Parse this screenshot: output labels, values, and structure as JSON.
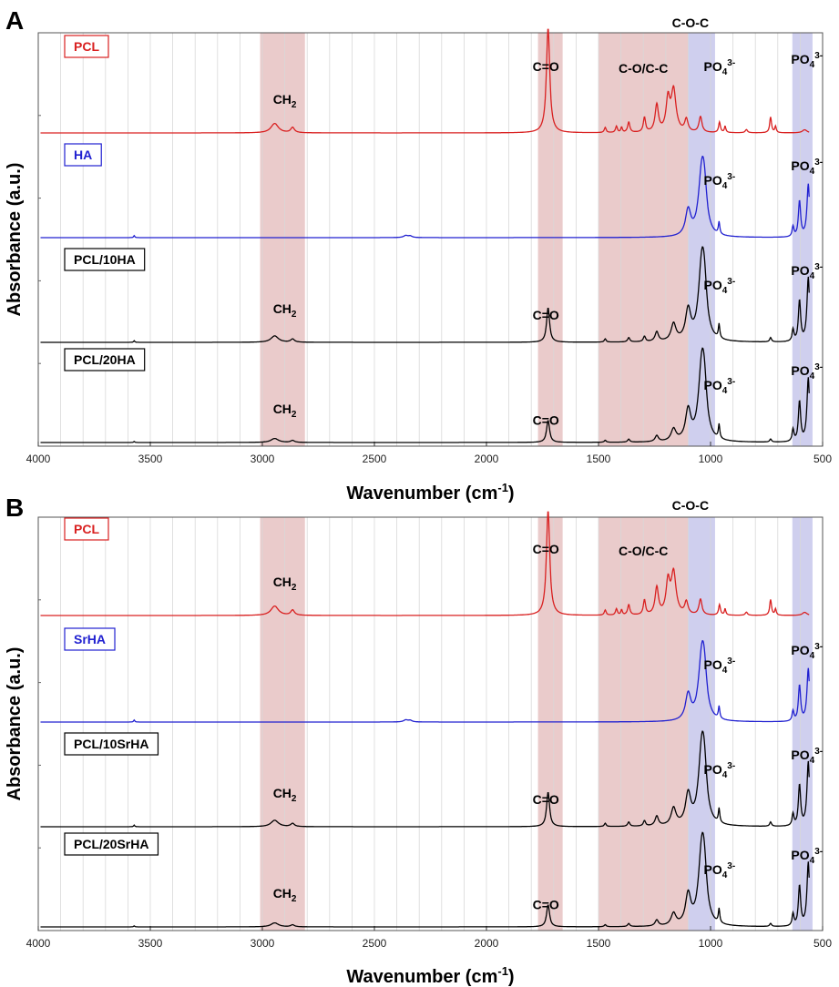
{
  "colors": {
    "pcl": "#d92020",
    "ha": "#2020d0",
    "composite": "#000000",
    "band_pink": "#d9a0a0",
    "band_blue": "#a8a8e0"
  },
  "chart_data": [
    {
      "panel": "A",
      "type": "line",
      "xlabel": "Wavenumber (cm",
      "xlabel_sup": "-1",
      "xlabel_close": ")",
      "ylabel": "Absorbance (a.u.)",
      "xlim": [
        4000,
        500
      ],
      "x_reversed": true,
      "x_ticks": [
        "4000",
        "3500",
        "3000",
        "2500",
        "2000",
        "1500",
        "1000",
        "500"
      ],
      "grid": true,
      "bands": [
        {
          "from": 3010,
          "to": 2810,
          "color": "pink"
        },
        {
          "from": 1770,
          "to": 1660,
          "color": "pink"
        },
        {
          "from": 1500,
          "to": 1100,
          "color": "pink"
        },
        {
          "from": 1100,
          "to": 980,
          "color": "blue"
        },
        {
          "from": 635,
          "to": 545,
          "color": "blue"
        }
      ],
      "series": [
        {
          "name": "PCL",
          "color": "pcl"
        },
        {
          "name": "HA",
          "color": "ha"
        },
        {
          "name": "PCL/10HA",
          "color": "composite"
        },
        {
          "name": "PCL/20HA",
          "color": "composite"
        }
      ],
      "annotations": [
        {
          "series": 0,
          "x": 2900,
          "text": "CH",
          "sub": "2",
          "sup": ""
        },
        {
          "series": 0,
          "x": 1735,
          "text": "C=O",
          "sub": "",
          "sup": ""
        },
        {
          "series": 0,
          "x": 1300,
          "text": "C-O/C-C",
          "sub": "",
          "sup": ""
        },
        {
          "series": 0,
          "x": 1090,
          "text": "C-O-C",
          "sub": "",
          "sup": ""
        },
        {
          "series": 0,
          "x": 960,
          "text": "PO",
          "sub": "4",
          "sup": "3-"
        },
        {
          "series": 0,
          "x": 570,
          "text": "PO",
          "sub": "4",
          "sup": "3-"
        },
        {
          "series": 1,
          "x": 960,
          "text": "PO",
          "sub": "4",
          "sup": "3-"
        },
        {
          "series": 1,
          "x": 570,
          "text": "PO",
          "sub": "4",
          "sup": "3-"
        },
        {
          "series": 2,
          "x": 2900,
          "text": "CH",
          "sub": "2",
          "sup": ""
        },
        {
          "series": 2,
          "x": 1735,
          "text": "C=O",
          "sub": "",
          "sup": ""
        },
        {
          "series": 2,
          "x": 960,
          "text": "PO",
          "sub": "4",
          "sup": "3-"
        },
        {
          "series": 2,
          "x": 570,
          "text": "PO",
          "sub": "4",
          "sup": "3-"
        },
        {
          "series": 3,
          "x": 2900,
          "text": "CH",
          "sub": "2",
          "sup": ""
        },
        {
          "series": 3,
          "x": 1735,
          "text": "C=O",
          "sub": "",
          "sup": ""
        },
        {
          "series": 3,
          "x": 960,
          "text": "PO",
          "sub": "4",
          "sup": "3-"
        },
        {
          "series": 3,
          "x": 570,
          "text": "PO",
          "sub": "4",
          "sup": "3-"
        }
      ]
    },
    {
      "panel": "B",
      "type": "line",
      "xlabel": "Wavenumber (cm",
      "xlabel_sup": "-1",
      "xlabel_close": ")",
      "ylabel": "Absorbance (a.u.)",
      "xlim": [
        4000,
        500
      ],
      "x_reversed": true,
      "x_ticks": [
        "4000",
        "3500",
        "3000",
        "2500",
        "2000",
        "1500",
        "1000",
        "500"
      ],
      "grid": true,
      "bands": [
        {
          "from": 3010,
          "to": 2810,
          "color": "pink"
        },
        {
          "from": 1770,
          "to": 1660,
          "color": "pink"
        },
        {
          "from": 1500,
          "to": 1100,
          "color": "pink"
        },
        {
          "from": 1100,
          "to": 980,
          "color": "blue"
        },
        {
          "from": 635,
          "to": 545,
          "color": "blue"
        }
      ],
      "series": [
        {
          "name": "PCL",
          "color": "pcl"
        },
        {
          "name": "SrHA",
          "color": "ha"
        },
        {
          "name": "PCL/10SrHA",
          "color": "composite"
        },
        {
          "name": "PCL/20SrHA",
          "color": "composite"
        }
      ],
      "annotations": [
        {
          "series": 0,
          "x": 2900,
          "text": "CH",
          "sub": "2",
          "sup": ""
        },
        {
          "series": 0,
          "x": 1735,
          "text": "C=O",
          "sub": "",
          "sup": ""
        },
        {
          "series": 0,
          "x": 1300,
          "text": "C-O/C-C",
          "sub": "",
          "sup": ""
        },
        {
          "series": 0,
          "x": 1090,
          "text": "C-O-C",
          "sub": "",
          "sup": ""
        },
        {
          "series": 1,
          "x": 960,
          "text": "PO",
          "sub": "4",
          "sup": "3-"
        },
        {
          "series": 1,
          "x": 570,
          "text": "PO",
          "sub": "4",
          "sup": "3-"
        },
        {
          "series": 2,
          "x": 2900,
          "text": "CH",
          "sub": "2",
          "sup": ""
        },
        {
          "series": 2,
          "x": 1735,
          "text": "C=O",
          "sub": "",
          "sup": ""
        },
        {
          "series": 2,
          "x": 960,
          "text": "PO",
          "sub": "4",
          "sup": "3-"
        },
        {
          "series": 2,
          "x": 570,
          "text": "PO",
          "sub": "4",
          "sup": "3-"
        },
        {
          "series": 3,
          "x": 2900,
          "text": "CH",
          "sub": "2",
          "sup": ""
        },
        {
          "series": 3,
          "x": 1735,
          "text": "C=O",
          "sub": "",
          "sup": ""
        },
        {
          "series": 3,
          "x": 960,
          "text": "PO",
          "sub": "4",
          "sup": "3-"
        },
        {
          "series": 3,
          "x": 570,
          "text": "PO",
          "sub": "4",
          "sup": "3-"
        }
      ]
    }
  ]
}
